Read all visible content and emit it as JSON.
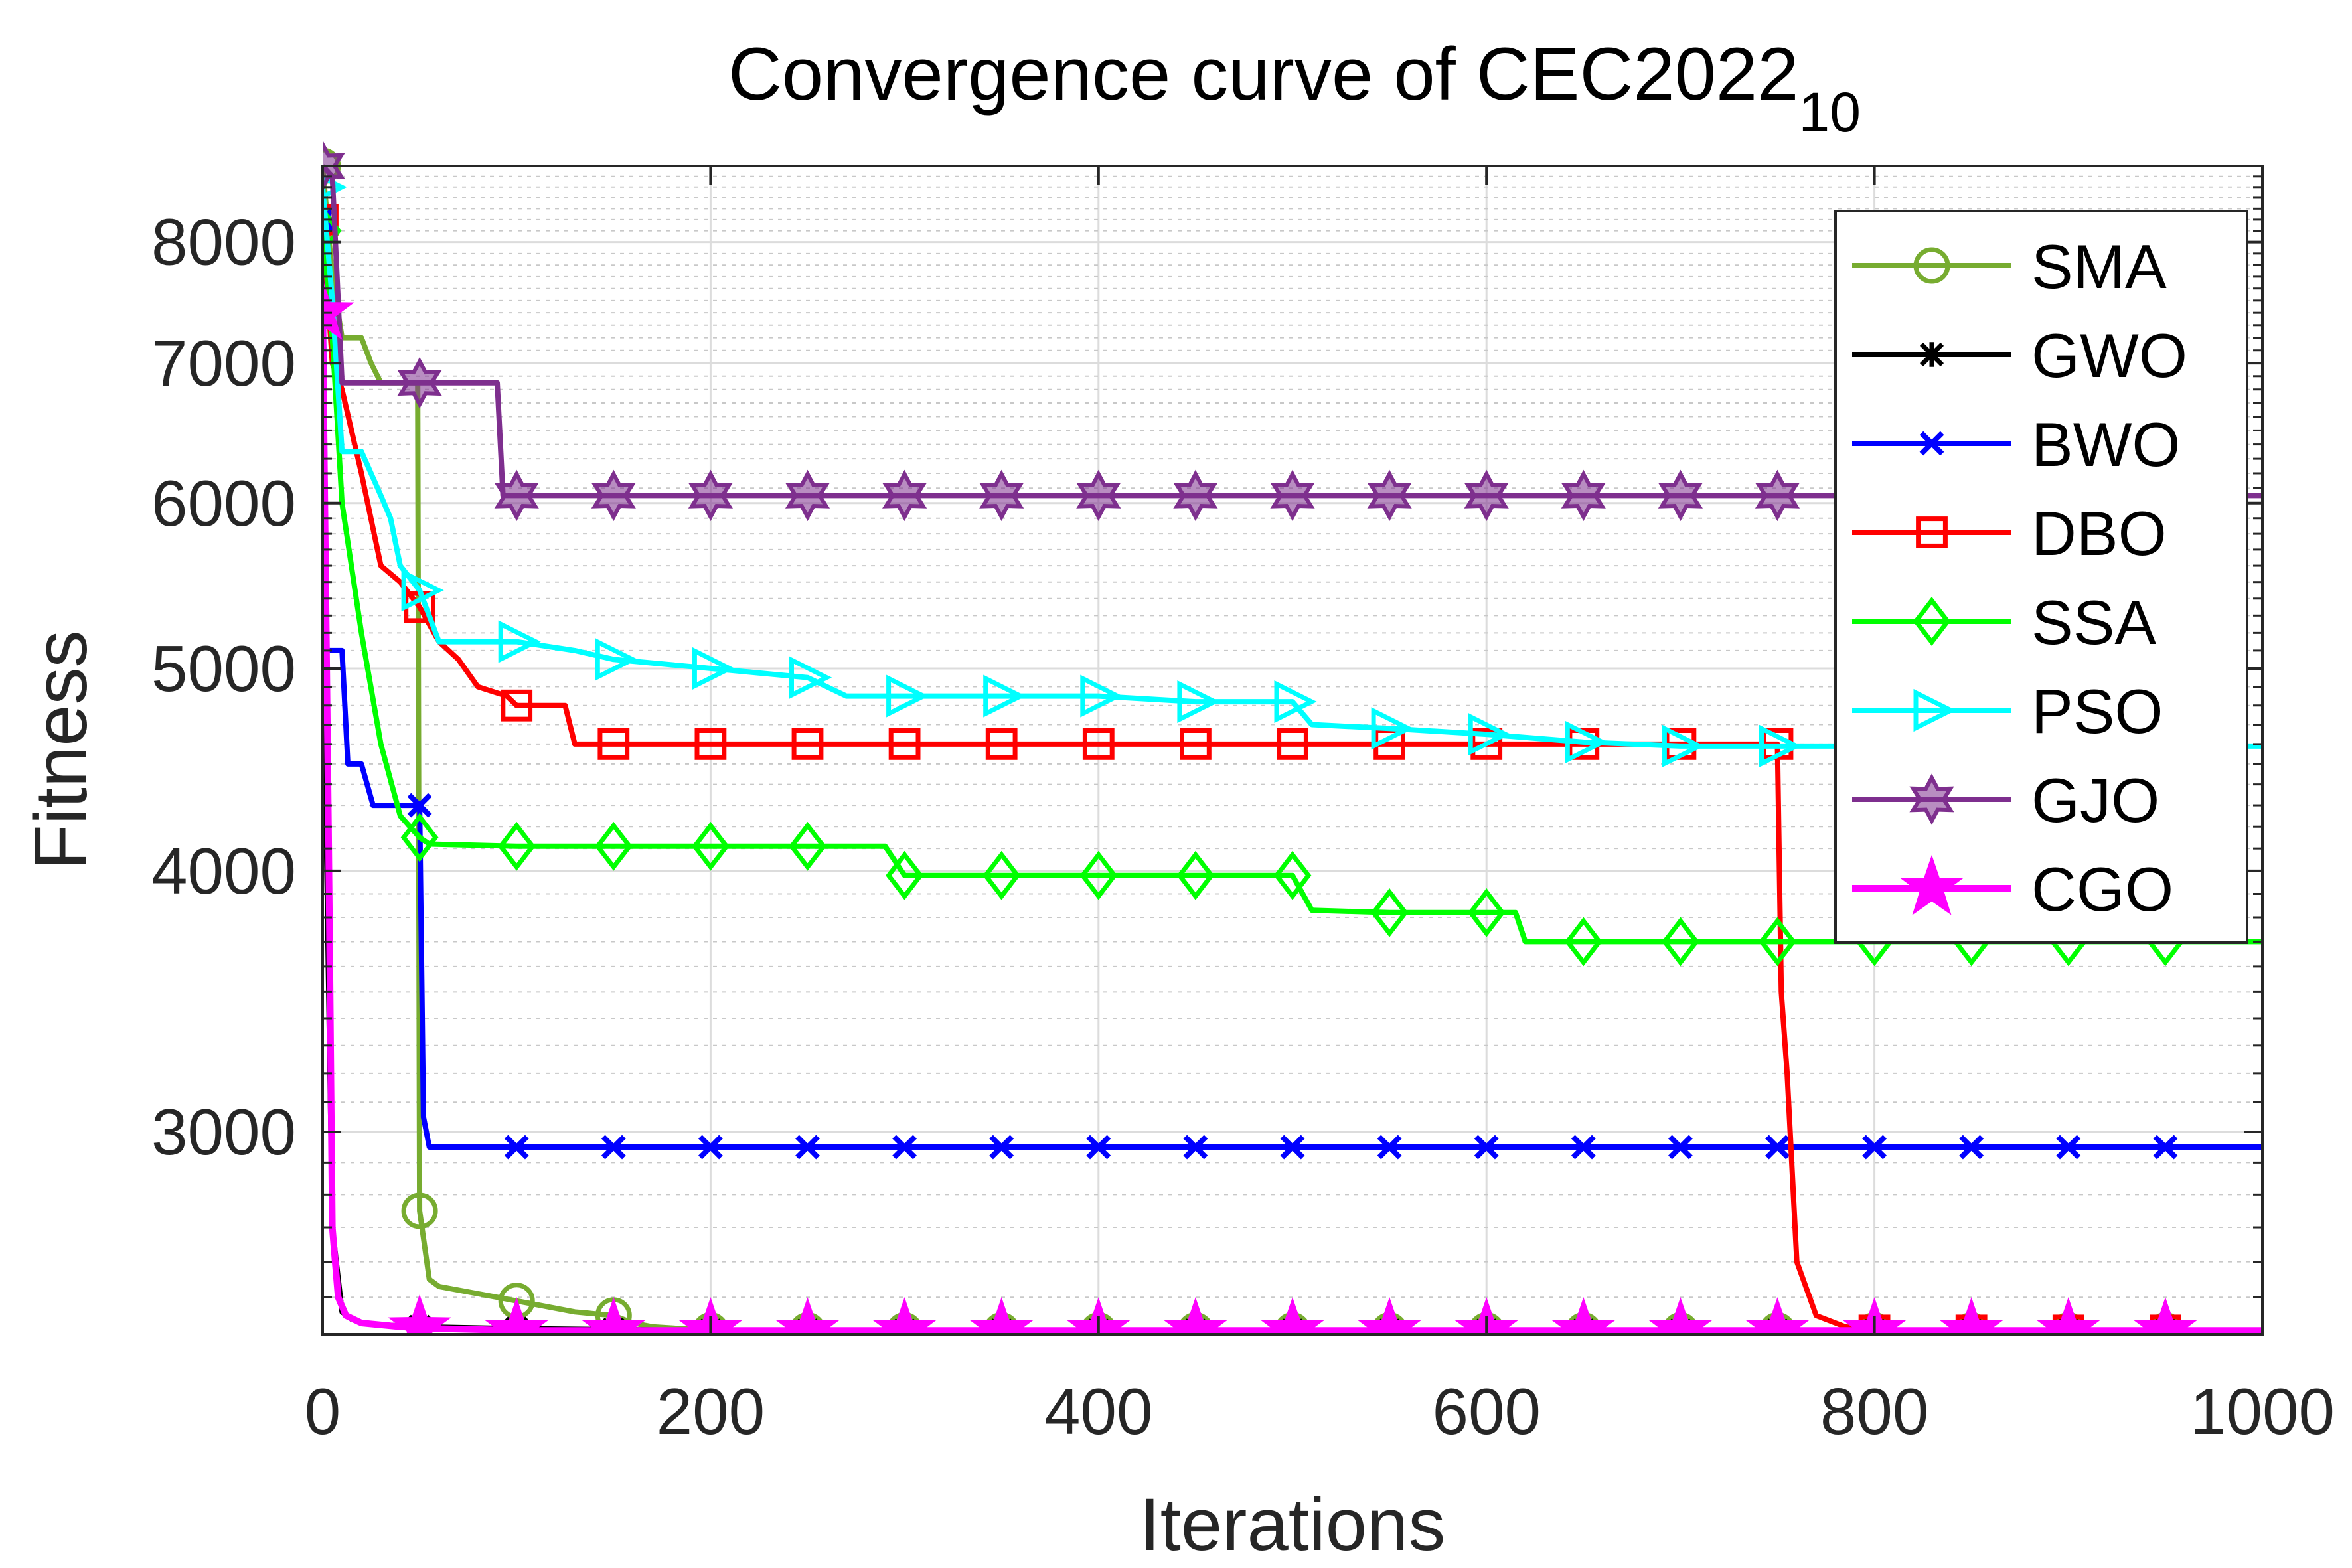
{
  "chart_data": {
    "type": "line",
    "title": "Convergence curve of CEC2022",
    "title_subscript": "10",
    "xlabel": "Iterations",
    "ylabel": "Fitness",
    "xlim": [
      0,
      1000
    ],
    "ylim": [
      2400,
      8700
    ],
    "yscale": "log",
    "grid": true,
    "legend_position": "top-right",
    "x_ticks": [
      0,
      200,
      400,
      600,
      800,
      1000
    ],
    "x_tick_labels": [
      "0",
      "200",
      "400",
      "600",
      "800",
      "1000"
    ],
    "y_ticks": [
      3000,
      4000,
      5000,
      6000,
      7000,
      8000
    ],
    "y_tick_labels": [
      "3000",
      "4000",
      "5000",
      "6000",
      "7000",
      "8000"
    ],
    "series": [
      {
        "name": "SMA",
        "color": "#77AC30",
        "marker": "circle",
        "x": [
          0,
          5,
          10,
          20,
          25,
          30,
          35,
          49,
          50,
          55,
          60,
          80,
          100,
          110,
          130,
          150,
          160,
          170,
          200,
          1000
        ],
        "y": [
          8700,
          7700,
          7200,
          7200,
          7000,
          6850,
          6850,
          6850,
          2750,
          2550,
          2530,
          2510,
          2490,
          2480,
          2460,
          2450,
          2430,
          2420,
          2410,
          2410
        ]
      },
      {
        "name": "GWO",
        "color": "#000000",
        "marker": "asterisk",
        "x": [
          0,
          2,
          5,
          10,
          15,
          20,
          30,
          50,
          100,
          200,
          1000
        ],
        "y": [
          8200,
          4100,
          2700,
          2460,
          2440,
          2430,
          2425,
          2420,
          2415,
          2410,
          2410
        ]
      },
      {
        "name": "BWO",
        "color": "#0000FF",
        "marker": "x",
        "x": [
          0,
          2,
          10,
          13,
          20,
          26,
          40,
          50,
          52,
          55,
          1000
        ],
        "y": [
          8200,
          5100,
          5100,
          4500,
          4500,
          4300,
          4300,
          4300,
          3050,
          2950,
          2950
        ]
      },
      {
        "name": "DBO",
        "color": "#FF0000",
        "marker": "square",
        "x": [
          0,
          5,
          10,
          20,
          30,
          40,
          50,
          60,
          70,
          80,
          95,
          100,
          110,
          125,
          130,
          200,
          700,
          750,
          752,
          755,
          760,
          770,
          785,
          800,
          1000
        ],
        "y": [
          8200,
          7000,
          6800,
          6200,
          5600,
          5500,
          5350,
          5150,
          5050,
          4900,
          4850,
          4800,
          4800,
          4800,
          4600,
          4600,
          4600,
          4600,
          3500,
          3200,
          2600,
          2450,
          2420,
          2410,
          2410
        ]
      },
      {
        "name": "SSA",
        "color": "#00FF00",
        "marker": "diamond",
        "x": [
          0,
          5,
          10,
          20,
          30,
          40,
          50,
          55,
          100,
          290,
          300,
          500,
          510,
          550,
          600,
          615,
          620,
          1000
        ],
        "y": [
          8100,
          7200,
          6000,
          5200,
          4600,
          4250,
          4150,
          4120,
          4110,
          4110,
          3980,
          3980,
          3830,
          3820,
          3820,
          3820,
          3700,
          3700
        ]
      },
      {
        "name": "PSO",
        "color": "#00FFFF",
        "marker": "triangle-right",
        "x": [
          0,
          5,
          10,
          20,
          30,
          35,
          40,
          50,
          60,
          100,
          130,
          150,
          200,
          250,
          270,
          300,
          400,
          450,
          500,
          510,
          550,
          600,
          650,
          700,
          1000
        ],
        "y": [
          8500,
          7500,
          6350,
          6350,
          6050,
          5900,
          5600,
          5450,
          5150,
          5150,
          5100,
          5050,
          5000,
          4950,
          4850,
          4850,
          4850,
          4820,
          4820,
          4700,
          4680,
          4650,
          4610,
          4590,
          4590
        ]
      },
      {
        "name": "GJO",
        "color": "#7E2F8E",
        "marker": "hexagram",
        "x": [
          0,
          5,
          10,
          50,
          90,
          93,
          1000
        ],
        "y": [
          8700,
          8600,
          6850,
          6850,
          6850,
          6050,
          6050
        ]
      },
      {
        "name": "CGO",
        "color": "#FF00FF",
        "marker": "pentagram",
        "x": [
          0,
          3,
          5,
          8,
          12,
          20,
          40,
          60,
          100,
          1000
        ],
        "y": [
          7400,
          4200,
          2700,
          2500,
          2450,
          2430,
          2420,
          2415,
          2410,
          2410
        ]
      }
    ],
    "legend_entries": [
      "SMA",
      "GWO",
      "BWO",
      "DBO",
      "SSA",
      "PSO",
      "GJO",
      "CGO"
    ]
  }
}
